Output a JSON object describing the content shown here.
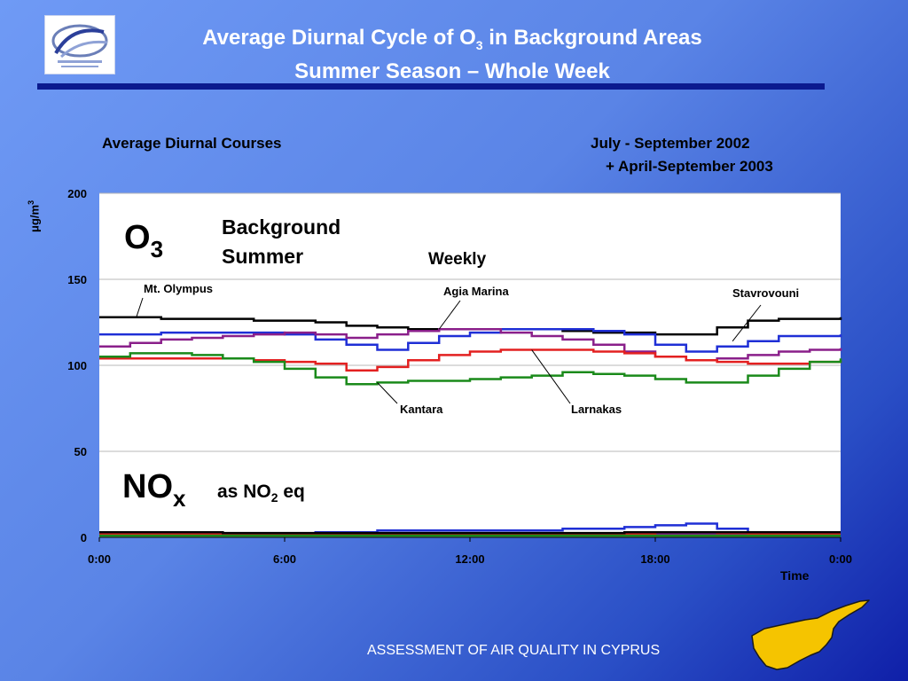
{
  "header": {
    "title_part1": "Average Diurnal Cycle of O",
    "title_sub": "3",
    "title_part2": " in Background Areas",
    "title_line2": "Summer Season – Whole Week"
  },
  "captions": {
    "left": "Average Diurnal Courses",
    "right_line1": "July - September 2002",
    "right_line2": "+ April-September 2003"
  },
  "footer": {
    "text": "ASSESSMENT OF AIR QUALITY IN CYPRUS"
  },
  "colors": {
    "accent_bar": "#0b1a8f",
    "map_fill": "#f5c400"
  },
  "chart_data": {
    "type": "line",
    "ylabel": "μg/m³",
    "xlabel": "Time",
    "xlim": [
      0,
      24
    ],
    "ylim": [
      0,
      200
    ],
    "x_ticks": [
      "0:00",
      "6:00",
      "12:00",
      "18:00",
      "0:00"
    ],
    "y_ticks": [
      0,
      50,
      100,
      150,
      200
    ],
    "grid": "horizontal",
    "x": [
      0,
      1,
      2,
      3,
      4,
      5,
      6,
      7,
      8,
      9,
      10,
      11,
      12,
      13,
      14,
      15,
      16,
      17,
      18,
      19,
      20,
      21,
      22,
      23,
      24
    ],
    "annotations": {
      "o3_main": "O",
      "o3_sub": "3",
      "background": "Background",
      "summer": "Summer",
      "weekly": "Weekly",
      "nox_main": "NO",
      "nox_sub": "x",
      "as_no2_pre": "as NO",
      "as_no2_sub": "2",
      "as_no2_post": " eq"
    },
    "series": [
      {
        "name": "Mt. Olympus",
        "color": "#000000",
        "group": "O3",
        "values": [
          128,
          128,
          127,
          127,
          127,
          126,
          126,
          125,
          123,
          122,
          121,
          121,
          121,
          121,
          121,
          120,
          119,
          119,
          118,
          118,
          122,
          126,
          127,
          127,
          128
        ]
      },
      {
        "name": "Stavrovouni",
        "color": "#1f2fd6",
        "group": "O3",
        "values": [
          118,
          118,
          119,
          119,
          119,
          119,
          118,
          115,
          112,
          109,
          113,
          117,
          119,
          121,
          121,
          121,
          120,
          118,
          112,
          108,
          111,
          114,
          117,
          117,
          118
        ]
      },
      {
        "name": "Agia Marina",
        "color": "#8a1f8a",
        "group": "O3",
        "values": [
          111,
          113,
          115,
          116,
          117,
          118,
          119,
          118,
          116,
          118,
          120,
          121,
          121,
          119,
          117,
          115,
          112,
          108,
          105,
          103,
          104,
          106,
          108,
          109,
          110
        ]
      },
      {
        "name": "Larnakas",
        "color": "#e32020",
        "group": "O3",
        "values": [
          104,
          104,
          104,
          104,
          104,
          103,
          102,
          101,
          97,
          99,
          103,
          106,
          108,
          109,
          109,
          109,
          108,
          107,
          105,
          103,
          102,
          101,
          101,
          102,
          103
        ]
      },
      {
        "name": "Kantara",
        "color": "#1a8a1a",
        "group": "O3",
        "values": [
          105,
          107,
          107,
          106,
          104,
          102,
          98,
          93,
          89,
          90,
          91,
          91,
          92,
          93,
          94,
          96,
          95,
          94,
          92,
          90,
          90,
          94,
          98,
          102,
          104
        ]
      },
      {
        "name": "Stavrovouni",
        "color": "#1f2fd6",
        "group": "NOx",
        "values": [
          2,
          2,
          2,
          2,
          2,
          2,
          2,
          3,
          3,
          4,
          4,
          4,
          4,
          4,
          4,
          5,
          5,
          6,
          7,
          8,
          5,
          3,
          2,
          2,
          2
        ]
      },
      {
        "name": "Agia Marina",
        "color": "#8a1f8a",
        "group": "NOx",
        "values": [
          1.5,
          1.5,
          1.5,
          1.5,
          1.5,
          1.5,
          1.5,
          1.5,
          1.5,
          1.5,
          1.5,
          1.5,
          1.5,
          1.5,
          1.5,
          1.5,
          1.5,
          1.5,
          2,
          2,
          1.5,
          1.5,
          1.5,
          1.5,
          1.5
        ]
      },
      {
        "name": "Larnakas",
        "color": "#e32020",
        "group": "NOx",
        "values": [
          2,
          2,
          2,
          2,
          2,
          2,
          2,
          2,
          2,
          2,
          2,
          2,
          2,
          2,
          2,
          2,
          2,
          2,
          3,
          3,
          2.5,
          2,
          2,
          2,
          2
        ]
      },
      {
        "name": "Kantara",
        "color": "#1a8a1a",
        "group": "NOx",
        "values": [
          1,
          1,
          1,
          1,
          1,
          1,
          1,
          1,
          1,
          1,
          1,
          1,
          1,
          1,
          1,
          1,
          1,
          1,
          1,
          1,
          1,
          1,
          1,
          1,
          1
        ]
      },
      {
        "name": "Mt. Olympus",
        "color": "#000000",
        "group": "NOx",
        "values": [
          3,
          3,
          3,
          3,
          2.5,
          2.5,
          2.5,
          2.5,
          2.5,
          2.5,
          2.5,
          2.5,
          2.5,
          2.5,
          2.5,
          2.5,
          2.5,
          3,
          3,
          3,
          3,
          3,
          3,
          3,
          3
        ]
      }
    ],
    "labels": [
      {
        "text": "Mt. Olympus",
        "series": 0,
        "at_x": 1.2
      },
      {
        "text": "Agia Marina",
        "series": 2,
        "at_x": 11.0
      },
      {
        "text": "Stavrovouni",
        "series": 1,
        "at_x": 20.5
      },
      {
        "text": "Kantara",
        "series": 4,
        "at_x": 9.0
      },
      {
        "text": "Larnakas",
        "series": 3,
        "at_x": 14.0
      }
    ]
  }
}
